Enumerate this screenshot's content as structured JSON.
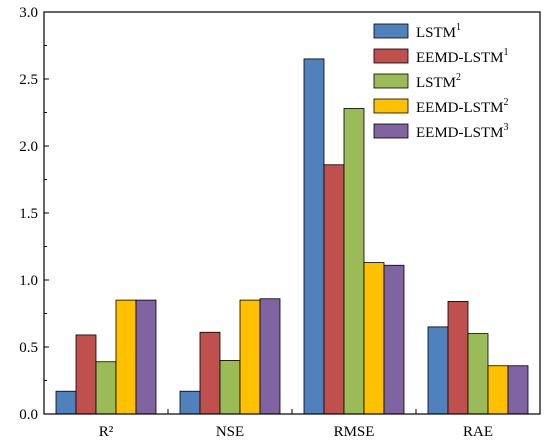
{
  "chart_data": {
    "type": "bar",
    "categories": [
      "R²",
      "NSE",
      "RMSE",
      "RAE"
    ],
    "ylim": [
      0,
      3.0
    ],
    "yticks": [
      "0.0",
      "0.5",
      "1.0",
      "1.5",
      "2.0",
      "2.5",
      "3.0"
    ],
    "ytick_values": [
      0,
      0.5,
      1.0,
      1.5,
      2.0,
      2.5,
      3.0
    ],
    "grid": false,
    "legend_position": "top-right",
    "series": [
      {
        "name": "LSTM",
        "superscript": "1",
        "color": "#4F81BD",
        "values": [
          0.17,
          0.17,
          2.65,
          0.65
        ]
      },
      {
        "name": "EEMD-LSTM",
        "superscript": "1",
        "color": "#C0504D",
        "values": [
          0.59,
          0.61,
          1.86,
          0.84
        ]
      },
      {
        "name": "LSTM",
        "superscript": "2",
        "color": "#9BBB59",
        "values": [
          0.39,
          0.4,
          2.28,
          0.6
        ]
      },
      {
        "name": "EEMD-LSTM",
        "superscript": "2",
        "color": "#FFC000",
        "values": [
          0.85,
          0.85,
          1.13,
          0.36
        ]
      },
      {
        "name": "EEMD-LSTM",
        "superscript": "3",
        "color": "#8064A2",
        "values": [
          0.85,
          0.86,
          1.11,
          0.36
        ]
      }
    ]
  }
}
